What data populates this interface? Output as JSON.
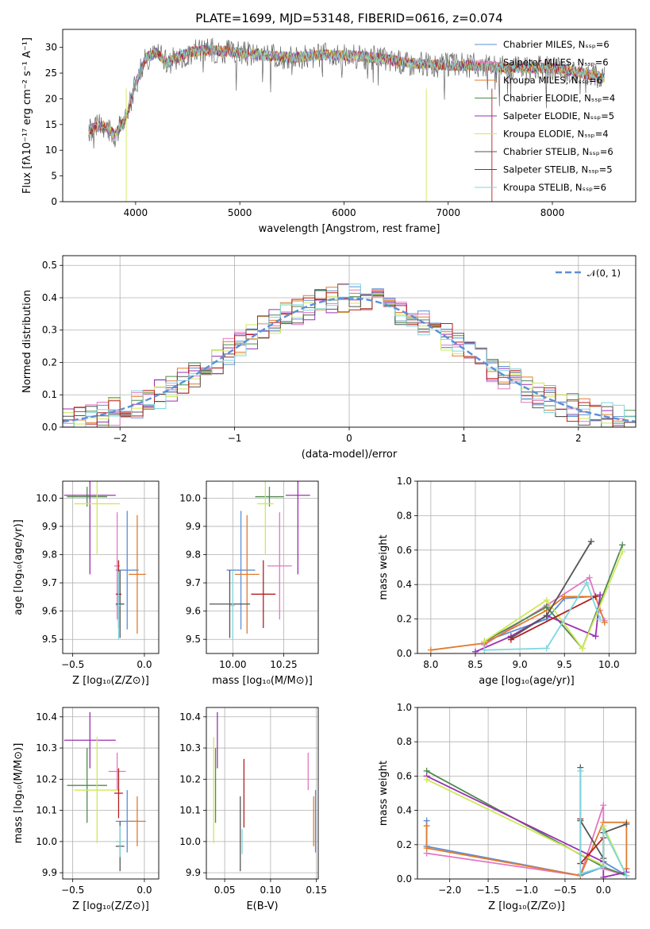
{
  "colors": [
    "#5b8fd6",
    "#e377c2",
    "#e07b2e",
    "#4f8a4f",
    "#9b30b0",
    "#cfe85a",
    "#555555",
    "#b41f1f",
    "#7fd6e0"
  ],
  "chart_data": [
    {
      "id": "spectrum",
      "type": "line",
      "title": "PLATE=1699, MJD=53148, FIBERID=0616, z=0.074",
      "xlabel": "wavelength [Angstrom, rest frame]",
      "ylabel": "Flux [fλ10⁻¹⁷ erg cm⁻² s⁻¹ A⁻¹]",
      "xlim": [
        3300,
        8800
      ],
      "ylim": [
        0,
        33.5
      ],
      "xticks": [
        "4000",
        "5000",
        "6000",
        "7000",
        "8000"
      ],
      "yticks": [
        "0",
        "5",
        "10",
        "15",
        "20",
        "25",
        "30"
      ],
      "continuum": {
        "x": [
          3550,
          3700,
          3800,
          3900,
          4000,
          4100,
          4200,
          4300,
          4500,
          4700,
          5000,
          5200,
          5500,
          5800,
          6000,
          6300,
          6600,
          7000,
          7300,
          7600,
          8000,
          8300,
          8500
        ],
        "y": [
          14,
          15,
          13,
          16,
          23,
          28,
          29,
          27,
          29,
          29.5,
          29,
          28.5,
          28,
          28.5,
          28.5,
          28,
          27,
          26.5,
          26.5,
          26,
          26,
          25,
          24
        ]
      },
      "legend": [
        "Chabrier MILES, Nₛₛₚ=6",
        "Salpeter MILES, Nₛₛₚ=6",
        "Kroupa MILES, Nₛₛₚ=6",
        "Chabrier ELODIE, Nₛₛₚ=4",
        "Salpeter ELODIE, Nₛₛₚ=5",
        "Kroupa ELODIE, Nₛₛₚ=4",
        "Chabrier STELIB, Nₛₛₚ=6",
        "Salpeter STELIB, Nₛₛₚ=5",
        "Kroupa STELIB, Nₛₛₚ=6"
      ]
    },
    {
      "id": "residuals",
      "type": "line",
      "xlabel": "(data-model)/error",
      "ylabel": "Normed distribution",
      "xlim": [
        -2.5,
        2.5
      ],
      "ylim": [
        0,
        0.53
      ],
      "xticks": [
        "−2",
        "−1",
        "0",
        "1",
        "2"
      ],
      "yticks": [
        "0.0",
        "0.1",
        "0.2",
        "0.3",
        "0.4",
        "0.5"
      ],
      "legend": [
        "𝒩(0, 1)"
      ],
      "gaussian": {
        "mu": 0,
        "sigma": 1
      },
      "bin_width": 0.1
    },
    {
      "id": "age_vs_Z",
      "type": "scatter",
      "xlabel": "Z [log₁₀(Z/Z⊙)]",
      "ylabel": "age  [log₁₀(age/yr)]",
      "xlim": [
        -0.57,
        0.1
      ],
      "ylim": [
        9.45,
        10.06
      ],
      "xticks": [
        "−0.5",
        "0.0"
      ],
      "yticks": [
        "9.5",
        "9.6",
        "9.7",
        "9.8",
        "9.9",
        "10.0"
      ],
      "points": [
        {
          "x": -0.12,
          "y": 9.745,
          "xerr": 0.08,
          "yerr": 0.21
        },
        {
          "x": -0.19,
          "y": 9.76,
          "xerr": 0.02,
          "yerr": 0.19
        },
        {
          "x": -0.05,
          "y": 9.73,
          "xerr": 0.06,
          "yerr": 0.21
        },
        {
          "x": -0.4,
          "y": 10.005,
          "xerr": 0.14,
          "yerr": 0.035
        },
        {
          "x": -0.38,
          "y": 10.01,
          "xerr": 0.18,
          "yerr": 0.28
        },
        {
          "x": -0.33,
          "y": 9.98,
          "xerr": 0.16,
          "yerr": 0.18
        },
        {
          "x": -0.17,
          "y": 9.625,
          "xerr": 0.03,
          "yerr": 0.12
        },
        {
          "x": -0.18,
          "y": 9.66,
          "xerr": 0.02,
          "yerr": 0.12
        },
        {
          "x": -0.18,
          "y": 9.62,
          "xerr": 0.02,
          "yerr": 0.12
        }
      ]
    },
    {
      "id": "age_vs_mass",
      "type": "scatter",
      "xlabel": "mass [log₁₀(M/M⊙)]",
      "xlim": [
        9.87,
        10.42
      ],
      "ylim": [
        9.45,
        10.06
      ],
      "xticks": [
        "10.00",
        "10.25"
      ],
      "yticks": [
        "9.5",
        "9.6",
        "9.7",
        "9.8",
        "9.9",
        "10.0"
      ],
      "points": [
        {
          "x": 10.04,
          "y": 9.745,
          "xerr": 0.07,
          "yerr": 0.21
        },
        {
          "x": 10.23,
          "y": 9.76,
          "xerr": 0.06,
          "yerr": 0.19
        },
        {
          "x": 10.07,
          "y": 9.73,
          "xerr": 0.06,
          "yerr": 0.21
        },
        {
          "x": 10.18,
          "y": 10.005,
          "xerr": 0.07,
          "yerr": 0.035
        },
        {
          "x": 10.32,
          "y": 10.01,
          "xerr": 0.06,
          "yerr": 0.28
        },
        {
          "x": 10.16,
          "y": 9.98,
          "xerr": 0.04,
          "yerr": 0.18
        },
        {
          "x": 9.985,
          "y": 9.625,
          "xerr": 0.1,
          "yerr": 0.12
        },
        {
          "x": 10.15,
          "y": 9.66,
          "xerr": 0.06,
          "yerr": 0.12
        },
        {
          "x": 10.0,
          "y": 9.62,
          "xerr": 0.01,
          "yerr": 0.12
        }
      ]
    },
    {
      "id": "weight_vs_age",
      "type": "line",
      "xlabel": "age  [log₁₀(age/yr)]",
      "ylabel": "mass weight",
      "xlim": [
        7.85,
        10.3
      ],
      "ylim": [
        0,
        1
      ],
      "xticks": [
        "8.0",
        "8.5",
        "9.0",
        "9.5",
        "10.0"
      ],
      "yticks": [
        "0.0",
        "0.2",
        "0.4",
        "0.6",
        "0.8",
        "1.0"
      ],
      "series": [
        {
          "x": [
            8.6,
            9.3,
            9.5,
            9.8,
            9.9
          ],
          "y": [
            0.07,
            0.2,
            0.32,
            0.33,
            0.34
          ]
        },
        {
          "x": [
            8.6,
            9.3,
            9.78,
            9.9,
            9.95
          ],
          "y": [
            0.05,
            0.28,
            0.44,
            0.25,
            0.19
          ]
        },
        {
          "x": [
            8.0,
            8.6,
            9.3,
            9.5,
            9.85,
            9.95
          ],
          "y": [
            0.02,
            0.06,
            0.25,
            0.33,
            0.33,
            0.18
          ]
        },
        {
          "x": [
            8.6,
            9.3,
            9.7,
            10.15
          ],
          "y": [
            0.07,
            0.27,
            0.03,
            0.63
          ]
        },
        {
          "x": [
            8.5,
            8.9,
            9.3,
            9.85,
            9.9
          ],
          "y": [
            0.01,
            0.1,
            0.22,
            0.1,
            0.34
          ]
        },
        {
          "x": [
            8.6,
            9.3,
            9.7,
            10.15
          ],
          "y": [
            0.07,
            0.31,
            0.03,
            0.59
          ]
        },
        {
          "x": [
            8.9,
            9.3,
            9.8
          ],
          "y": [
            0.09,
            0.22,
            0.65
          ]
        },
        {
          "x": [
            8.9,
            9.85
          ],
          "y": [
            0.08,
            0.33
          ]
        },
        {
          "x": [
            8.6,
            9.3,
            9.75,
            9.9
          ],
          "y": [
            0.02,
            0.03,
            0.41,
            0.2
          ]
        }
      ]
    },
    {
      "id": "mass_vs_Z",
      "type": "scatter",
      "xlabel": "Z [log₁₀(Z/Z⊙)]",
      "ylabel": "mass [log₁₀(M/M⊙)]",
      "xlim": [
        -0.57,
        0.1
      ],
      "ylim": [
        9.88,
        10.43
      ],
      "xticks": [
        "−0.5",
        "0.0"
      ],
      "yticks": [
        "9.9",
        "10.0",
        "10.1",
        "10.2",
        "10.3",
        "10.4"
      ],
      "points": [
        {
          "x": -0.12,
          "y": 10.065,
          "xerr": 0.08,
          "yerr": 0.1
        },
        {
          "x": -0.19,
          "y": 10.225,
          "xerr": 0.06,
          "yerr": 0.06
        },
        {
          "x": -0.05,
          "y": 10.065,
          "xerr": 0.06,
          "yerr": 0.08
        },
        {
          "x": -0.4,
          "y": 10.18,
          "xerr": 0.14,
          "yerr": 0.12
        },
        {
          "x": -0.38,
          "y": 10.325,
          "xerr": 0.18,
          "yerr": 0.09
        },
        {
          "x": -0.33,
          "y": 10.165,
          "xerr": 0.16,
          "yerr": 0.17
        },
        {
          "x": -0.17,
          "y": 9.985,
          "xerr": 0.03,
          "yerr": 0.08
        },
        {
          "x": -0.18,
          "y": 10.155,
          "xerr": 0.03,
          "yerr": 0.08
        },
        {
          "x": -0.17,
          "y": 10.0,
          "xerr": 0.03,
          "yerr": 0.05
        }
      ]
    },
    {
      "id": "mass_vs_ebv",
      "type": "scatter",
      "xlabel": "E(B-V)",
      "xlim": [
        0.03,
        0.152
      ],
      "ylim": [
        9.88,
        10.43
      ],
      "xticks": [
        "0.05",
        "0.10",
        "0.15"
      ],
      "yticks": [
        "9.9",
        "10.0",
        "10.1",
        "10.2",
        "10.3",
        "10.4"
      ],
      "points": [
        {
          "x": 0.149,
          "y": 10.065,
          "xerr": 0,
          "yerr": 0.1
        },
        {
          "x": 0.141,
          "y": 10.225,
          "xerr": 0,
          "yerr": 0.06
        },
        {
          "x": 0.147,
          "y": 10.065,
          "xerr": 0,
          "yerr": 0.08
        },
        {
          "x": 0.04,
          "y": 10.18,
          "xerr": 0,
          "yerr": 0.12
        },
        {
          "x": 0.042,
          "y": 10.325,
          "xerr": 0,
          "yerr": 0.09
        },
        {
          "x": 0.038,
          "y": 10.165,
          "xerr": 0,
          "yerr": 0.17
        },
        {
          "x": 0.067,
          "y": 10.025,
          "xerr": 0,
          "yerr": 0.12
        },
        {
          "x": 0.071,
          "y": 10.155,
          "xerr": 0,
          "yerr": 0.11
        },
        {
          "x": 0.069,
          "y": 10.0,
          "xerr": 0,
          "yerr": 0.04
        }
      ]
    },
    {
      "id": "weight_vs_Z",
      "type": "line",
      "xlabel": "Z [log₁₀(Z/Z⊙)]",
      "ylabel": "mass weight",
      "xlim": [
        -2.42,
        0.42
      ],
      "ylim": [
        0,
        1
      ],
      "xticks": [
        "−2.0",
        "−1.5",
        "−1.0",
        "−0.5",
        "0.0"
      ],
      "yticks": [
        "0.0",
        "0.2",
        "0.4",
        "0.6",
        "0.8",
        "1.0"
      ],
      "series": [
        {
          "x": [
            -2.3,
            -2.3,
            -0.3,
            0.0,
            0.0,
            0.3
          ],
          "y": [
            0.34,
            0.19,
            0.02,
            0.07,
            0.1,
            0.02
          ]
        },
        {
          "x": [
            -2.3,
            -0.3,
            0.0,
            0.0,
            0.3
          ],
          "y": [
            0.15,
            0.02,
            0.43,
            0.06,
            0.02
          ]
        },
        {
          "x": [
            -2.3,
            -2.3,
            -0.3,
            0.0,
            0.3,
            0.3
          ],
          "y": [
            0.31,
            0.18,
            0.02,
            0.33,
            0.33,
            0.06
          ]
        },
        {
          "x": [
            -2.3,
            0.0,
            0.3
          ],
          "y": [
            0.63,
            0.07,
            0.02
          ]
        },
        {
          "x": [
            -2.3,
            0.0,
            0.0,
            0.3
          ],
          "y": [
            0.6,
            0.1,
            0.01,
            0.04
          ]
        },
        {
          "x": [
            -2.3,
            0.0,
            0.0,
            0.3
          ],
          "y": [
            0.58,
            0.08,
            0.31,
            0.02
          ]
        },
        {
          "x": [
            -0.3,
            -0.3,
            0.0,
            0.0,
            0.3
          ],
          "y": [
            0.65,
            0.34,
            0.12,
            0.27,
            0.32
          ]
        },
        {
          "x": [
            -0.3,
            -0.3,
            0.0
          ],
          "y": [
            0.35,
            0.09,
            0.24
          ]
        },
        {
          "x": [
            -0.3,
            -0.3,
            0.0,
            0.0,
            0.3
          ],
          "y": [
            0.63,
            0.03,
            0.07,
            0.29,
            0.02
          ]
        }
      ]
    }
  ]
}
